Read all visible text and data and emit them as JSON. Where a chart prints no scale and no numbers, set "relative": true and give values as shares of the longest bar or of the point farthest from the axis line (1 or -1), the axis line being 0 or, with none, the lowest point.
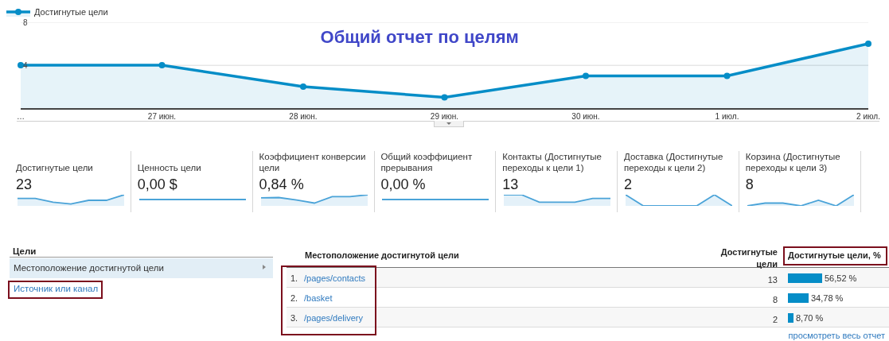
{
  "chart_data": [
    {
      "type": "area",
      "title": "Общий отчет по целям",
      "categories": [
        "…",
        "27 июн.",
        "28 июн.",
        "29 июн.",
        "30 июн.",
        "1 июл.",
        "2 июл."
      ],
      "series": [
        {
          "name": "Достигнутые цели",
          "color": "#058dc7",
          "values": [
            4,
            4,
            2,
            1,
            3,
            3,
            6
          ]
        }
      ],
      "ylim": [
        0,
        8
      ],
      "yticks": [
        4,
        8
      ],
      "grid": "y",
      "legend": "top left",
      "marker": "circle"
    },
    {
      "type": "area",
      "title": "Достигнутые цели",
      "subtitle": "23",
      "categories": [
        null,
        null,
        null,
        null,
        null,
        null,
        null
      ],
      "values": [
        0.67,
        0.67,
        0.33,
        0.17,
        0.5,
        0.5,
        1
      ],
      "relative": true,
      "color": "#4aa3d8"
    },
    {
      "type": "other",
      "title": "Ценность цели",
      "subtitle": "0,00 $"
    },
    {
      "type": "area",
      "title": "Коэффициент конверсии цели",
      "subtitle": "0,84 %",
      "categories": [
        null,
        null,
        null,
        null,
        null,
        null,
        null
      ],
      "values": [
        0.72,
        0.75,
        0.53,
        0.25,
        0.83,
        0.83,
        1
      ],
      "relative": true,
      "color": "#4aa3d8"
    },
    {
      "type": "other",
      "title": "Общий коэффициент прерывания",
      "subtitle": "0,00 %"
    },
    {
      "type": "area",
      "title": "Контакты (Достигнутые переходы к цели 1)",
      "subtitle": "13",
      "categories": [
        null,
        null,
        null,
        null,
        null,
        null,
        null
      ],
      "values": [
        1,
        1,
        0.33,
        0.33,
        0.33,
        0.67,
        0.67
      ],
      "relative": true,
      "color": "#4aa3d8"
    },
    {
      "type": "area",
      "title": "Доставка (Достигнутые переходы к цели 2)",
      "subtitle": "2",
      "categories": [
        null,
        null,
        null,
        null,
        null,
        null,
        null
      ],
      "values": [
        1,
        0,
        0,
        0,
        0,
        1,
        0
      ],
      "relative": true,
      "color": "#4aa3d8"
    },
    {
      "type": "area",
      "title": "Корзина (Достигнутые переходы к цели 3)",
      "subtitle": "8",
      "categories": [
        null,
        null,
        null,
        null,
        null,
        null,
        null
      ],
      "values": [
        0,
        0.25,
        0.25,
        0,
        0.5,
        0,
        1
      ],
      "relative": true,
      "color": "#4aa3d8"
    },
    {
      "type": "other",
      "title": "Цели",
      "annotations": [
        "Местоположение достигнутой цели",
        "Источник или канал"
      ]
    },
    {
      "type": "bar",
      "orientation": "horizontal",
      "ylabel": "Местоположение достигнутой цели",
      "xlabel": "Достигнутые цели, %",
      "categories": [
        "/pages/contacts",
        "/basket",
        "/pages/delivery"
      ],
      "values": [
        56.52,
        34.78,
        8.7
      ],
      "value_labels": [
        "56,52 %",
        "34,78 %",
        "8,70 %"
      ],
      "color": "#058dc7",
      "annotations": [
        "Достигнутые цели",
        "1.",
        "2.",
        "3.",
        "13",
        "8",
        "2",
        "просмотреть весь отчет"
      ]
    }
  ]
}
